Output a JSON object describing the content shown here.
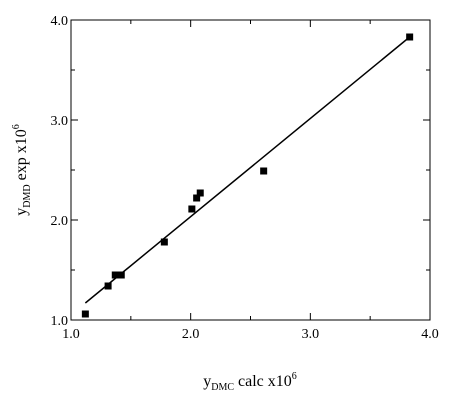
{
  "chart_data": {
    "type": "scatter",
    "xlabel": {
      "base": "y",
      "subscript": "DMC",
      "rest": " calc x10",
      "superscript": "6"
    },
    "ylabel": {
      "base": "y",
      "subscript": "DMD",
      "rest": " exp x10",
      "superscript": "6"
    },
    "xlim": [
      1.0,
      4.0
    ],
    "ylim": [
      1.0,
      4.0
    ],
    "x_ticks": [
      "1.0",
      "2.0",
      "3.0",
      "4.0"
    ],
    "y_ticks": [
      "1.0",
      "2.0",
      "3.0",
      "4.0"
    ],
    "grid": false,
    "series": [
      {
        "marker": "square",
        "color": "#000000",
        "points": [
          {
            "x": 1.12,
            "y": 1.06
          },
          {
            "x": 1.31,
            "y": 1.34
          },
          {
            "x": 1.37,
            "y": 1.45
          },
          {
            "x": 1.42,
            "y": 1.45
          },
          {
            "x": 1.78,
            "y": 1.78
          },
          {
            "x": 2.01,
            "y": 2.11
          },
          {
            "x": 2.05,
            "y": 2.22
          },
          {
            "x": 2.08,
            "y": 2.27
          },
          {
            "x": 2.61,
            "y": 2.49
          },
          {
            "x": 3.83,
            "y": 3.83
          }
        ]
      }
    ],
    "fit_line": {
      "color": "#000000",
      "x": [
        1.12,
        3.83
      ],
      "y": [
        1.17,
        3.83
      ]
    }
  }
}
